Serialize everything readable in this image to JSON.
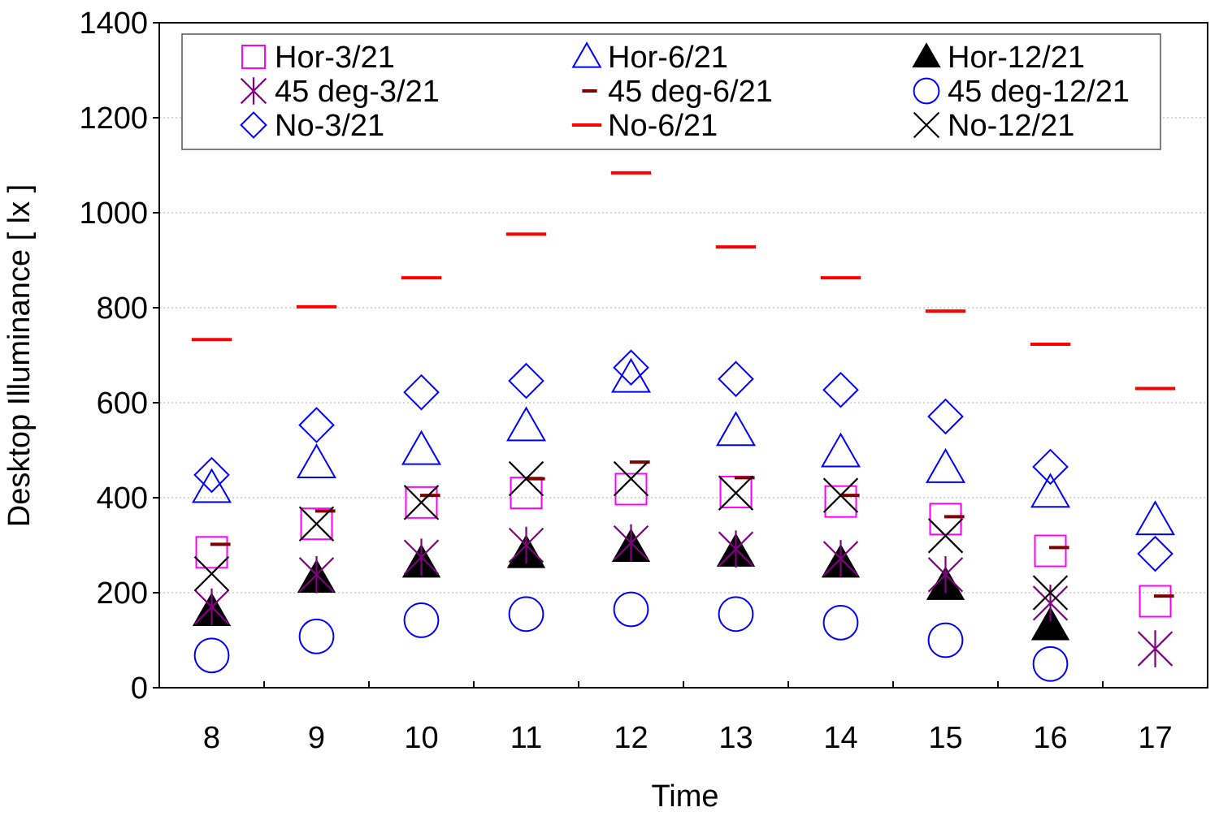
{
  "chart_data": {
    "type": "scatter",
    "title": "",
    "xlabel": "Time",
    "ylabel": "Desktop Illuminance [ lx ]",
    "categories": [
      "8",
      "9",
      "10",
      "11",
      "12",
      "13",
      "14",
      "15",
      "16",
      "17"
    ],
    "ylim": [
      0,
      1400
    ],
    "yticks": [
      "0",
      "200",
      "400",
      "600",
      "800",
      "1000",
      "1200",
      "1400"
    ],
    "grid": "horizontal dotted",
    "legend_position": "top",
    "series": [
      {
        "name": "Hor-3/21",
        "marker": "square-open",
        "color": "#ff00ff",
        "values": [
          285,
          345,
          390,
          410,
          418,
          412,
          392,
          355,
          288,
          182
        ]
      },
      {
        "name": "Hor-6/21",
        "marker": "triangle-open",
        "color": "#0000ff",
        "values": [
          420,
          472,
          500,
          550,
          652,
          540,
          495,
          462,
          410,
          352
        ]
      },
      {
        "name": "Hor-12/21",
        "marker": "triangle-filled",
        "color": "#000000",
        "values": [
          160,
          230,
          262,
          282,
          295,
          285,
          262,
          215,
          130,
          null
        ]
      },
      {
        "name": "45 deg-3/21",
        "marker": "asterisk",
        "color": "#800080",
        "values": [
          170,
          238,
          275,
          300,
          305,
          292,
          272,
          238,
          178,
          82
        ]
      },
      {
        "name": "45 deg-6/21",
        "marker": "dash-small",
        "color": "#800000",
        "values": [
          302,
          372,
          405,
          440,
          475,
          442,
          405,
          360,
          295,
          193
        ]
      },
      {
        "name": "45 deg-12/21",
        "marker": "circle-open",
        "color": "#0000ff",
        "values": [
          68,
          108,
          142,
          155,
          165,
          155,
          137,
          100,
          50,
          null
        ]
      },
      {
        "name": "No-3/21",
        "marker": "diamond-open",
        "color": "#0000ff",
        "values": [
          448,
          553,
          622,
          646,
          674,
          650,
          627,
          571,
          465,
          282
        ]
      },
      {
        "name": "No-6/21",
        "marker": "dash-large",
        "color": "#ff0000",
        "values": [
          733,
          802,
          863,
          955,
          1084,
          928,
          863,
          793,
          723,
          630
        ]
      },
      {
        "name": "No-12/21",
        "marker": "x",
        "color": "#000000",
        "values": [
          240,
          345,
          390,
          440,
          440,
          410,
          405,
          320,
          200,
          null
        ]
      }
    ]
  }
}
